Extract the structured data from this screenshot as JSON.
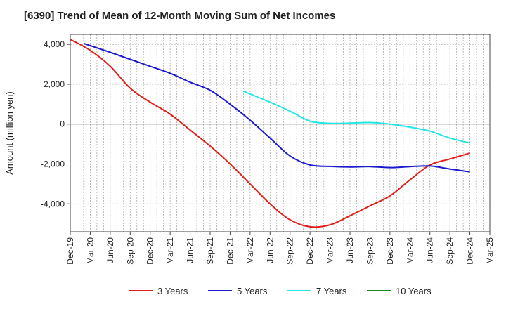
{
  "chart_data": {
    "type": "line",
    "title": "[6390]  Trend of Mean of 12-Month Moving Sum of Net Incomes",
    "ylabel": "Amount (million yen)",
    "xlabel": "",
    "ylim": [
      -5400,
      4500
    ],
    "yticks": [
      4000,
      2000,
      0,
      -2000,
      -4000
    ],
    "ytick_labels": [
      "4,000",
      "2,000",
      "0",
      "-2,000",
      "-4,000"
    ],
    "xlim": [
      "2019-12",
      "2025-03"
    ],
    "xtick_labels": [
      "Dec-19",
      "Mar-20",
      "Jun-20",
      "Sep-20",
      "Dec-20",
      "Mar-21",
      "Jun-21",
      "Sep-21",
      "Dec-21",
      "Mar-22",
      "Jun-22",
      "Sep-22",
      "Dec-22",
      "Mar-23",
      "Jun-23",
      "Sep-23",
      "Dec-23",
      "Mar-24",
      "Jun-24",
      "Sep-24",
      "Dec-24",
      "Mar-25"
    ],
    "grid": true,
    "legend_position": "bottom",
    "series": [
      {
        "name": "3 Years",
        "color": "#e0201b",
        "points": [
          [
            "2019-12",
            4250
          ],
          [
            "2020-03",
            3700
          ],
          [
            "2020-06",
            2900
          ],
          [
            "2020-09",
            1800
          ],
          [
            "2020-12",
            1100
          ],
          [
            "2021-03",
            500
          ],
          [
            "2021-06",
            -300
          ],
          [
            "2021-09",
            -1100
          ],
          [
            "2021-12",
            -2000
          ],
          [
            "2022-03",
            -3000
          ],
          [
            "2022-06",
            -4000
          ],
          [
            "2022-09",
            -4800
          ],
          [
            "2022-12",
            -5150
          ],
          [
            "2023-03",
            -5050
          ],
          [
            "2023-06",
            -4600
          ],
          [
            "2023-09",
            -4100
          ],
          [
            "2023-12",
            -3600
          ],
          [
            "2024-03",
            -2800
          ],
          [
            "2024-06",
            -2050
          ],
          [
            "2024-09",
            -1750
          ],
          [
            "2024-12",
            -1450
          ]
        ]
      },
      {
        "name": "5 Years",
        "color": "#1a1acc",
        "points": [
          [
            "2020-02",
            4050
          ],
          [
            "2020-06",
            3600
          ],
          [
            "2020-09",
            3250
          ],
          [
            "2020-12",
            2900
          ],
          [
            "2021-03",
            2550
          ],
          [
            "2021-06",
            2100
          ],
          [
            "2021-09",
            1700
          ],
          [
            "2021-12",
            1000
          ],
          [
            "2022-03",
            200
          ],
          [
            "2022-06",
            -700
          ],
          [
            "2022-09",
            -1600
          ],
          [
            "2022-12",
            -2050
          ],
          [
            "2023-03",
            -2120
          ],
          [
            "2023-06",
            -2150
          ],
          [
            "2023-09",
            -2130
          ],
          [
            "2023-12",
            -2180
          ],
          [
            "2024-03",
            -2130
          ],
          [
            "2024-06",
            -2100
          ],
          [
            "2024-09",
            -2250
          ],
          [
            "2024-12",
            -2400
          ]
        ]
      },
      {
        "name": "7 Years",
        "color": "#22e6e6",
        "points": [
          [
            "2022-02",
            1650
          ],
          [
            "2022-06",
            1100
          ],
          [
            "2022-09",
            650
          ],
          [
            "2022-12",
            150
          ],
          [
            "2023-03",
            40
          ],
          [
            "2023-06",
            50
          ],
          [
            "2023-09",
            80
          ],
          [
            "2023-12",
            0
          ],
          [
            "2024-03",
            -150
          ],
          [
            "2024-06",
            -350
          ],
          [
            "2024-09",
            -700
          ],
          [
            "2024-12",
            -950
          ]
        ]
      },
      {
        "name": "10 Years",
        "color": "#1a8a1a",
        "points": []
      }
    ]
  }
}
